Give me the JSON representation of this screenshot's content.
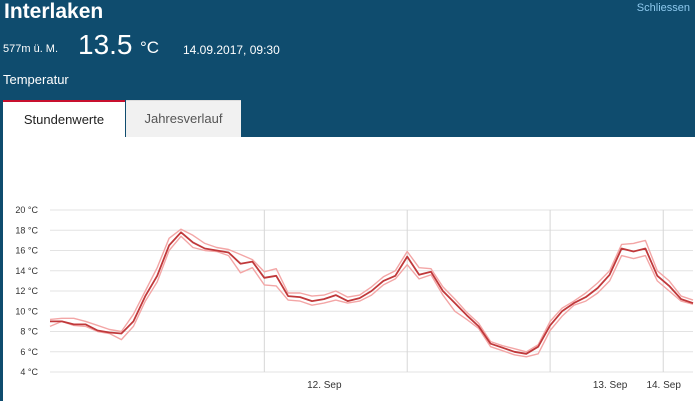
{
  "header": {
    "station": "Interlaken",
    "close_label": "Schliessen",
    "altitude": "577m ü. M.",
    "temperature": "13.5",
    "unit": "°C",
    "timestamp": "14.09.2017, 09:30",
    "section": "Temperatur"
  },
  "tabs": [
    {
      "label": "Stundenwerte",
      "active": true
    },
    {
      "label": "Jahresverlauf",
      "active": false
    }
  ],
  "colors": {
    "header_bg": "#0f4c6e",
    "link": "#8ec9ee",
    "active_tab_border": "#c8102e",
    "series_dark": "#c0393b",
    "series_light": "#f3a6a6"
  },
  "chart_data": {
    "type": "line",
    "ylim": [
      4,
      20
    ],
    "ytick_labels": [
      "20 °C",
      "18 °C",
      "16 °C",
      "14 °C",
      "12 °C",
      "10 °C",
      "8 °C",
      "6 °C",
      "4 °C"
    ],
    "yticks": [
      20,
      18,
      16,
      14,
      12,
      10,
      8,
      6,
      4
    ],
    "xlim_hours": [
      -42,
      12
    ],
    "xticks": [
      {
        "label": "12. Sep",
        "hour": -24
      },
      {
        "label": "13. Sep",
        "hour": 0
      },
      {
        "label": "14. Sep",
        "hour": 4.5
      }
    ],
    "vlines_hours": [
      -24,
      -12,
      0,
      9.5
    ],
    "x_hours": [
      -42.0,
      -41.0,
      -40.0,
      -39.0,
      -38.0,
      -37.0,
      -36.0,
      -35.0,
      -34.0,
      -33.0,
      -32.0,
      -31.0,
      -30.0,
      -29.0,
      -28.0,
      -27.0,
      -26.0,
      -25.0,
      -24.0,
      -23.0,
      -22.0,
      -21.0,
      -20.0,
      -19.0,
      -18.0,
      -17.0,
      -16.0,
      -15.0,
      -14.0,
      -13.0,
      -12.0,
      -11.0,
      -10.0,
      -9.0,
      -8.0,
      -7.0,
      -6.0,
      -5.0,
      -4.0,
      -3.0,
      -2.0,
      -1.0,
      0.0,
      1.0,
      2.0,
      3.0,
      4.0,
      5.0,
      6.0,
      7.0,
      8.0,
      9.0,
      10.0,
      11.0,
      12.0
    ],
    "series": [
      {
        "values": [
          9.0,
          9.0,
          8.7,
          8.7,
          8.1,
          7.9,
          7.8,
          9.0,
          11.5,
          13.5,
          16.5,
          17.8,
          16.8,
          16.2,
          16.0,
          15.8,
          14.7,
          14.9,
          13.3,
          13.5,
          11.5,
          11.4,
          11.0,
          11.2,
          11.6,
          11.0,
          11.3,
          12.0,
          13.0,
          13.5,
          15.4,
          13.6,
          13.9,
          12.0,
          10.8,
          9.6,
          8.5,
          6.8,
          6.4,
          6.0,
          5.8,
          6.5,
          8.6,
          10.0,
          10.8,
          11.4,
          12.3,
          13.6,
          16.2,
          15.9,
          16.2,
          13.5,
          12.5,
          11.2,
          10.8
        ]
      },
      {
        "values": [
          8.5,
          9.0,
          8.6,
          8.5,
          8.0,
          7.8,
          7.2,
          8.5,
          11.0,
          12.9,
          16.0,
          17.4,
          16.3,
          16.0,
          15.9,
          15.5,
          13.8,
          14.3,
          12.6,
          12.5,
          11.1,
          11.0,
          10.6,
          10.8,
          11.1,
          10.8,
          11.0,
          11.6,
          12.6,
          13.2,
          14.6,
          13.2,
          13.6,
          11.6,
          10.0,
          9.2,
          8.3,
          6.5,
          6.1,
          5.7,
          5.5,
          5.8,
          8.1,
          9.5,
          10.6,
          11.0,
          11.8,
          13.0,
          15.5,
          15.2,
          15.5,
          13.0,
          12.0,
          11.0,
          10.7
        ]
      },
      {
        "values": [
          9.2,
          9.3,
          9.3,
          9.0,
          8.6,
          8.2,
          8.0,
          9.7,
          12.0,
          14.3,
          17.2,
          18.1,
          17.5,
          16.7,
          16.3,
          16.1,
          15.6,
          15.1,
          13.9,
          14.2,
          11.8,
          11.8,
          11.5,
          11.6,
          12.0,
          11.4,
          11.6,
          12.4,
          13.4,
          14.0,
          15.9,
          14.3,
          14.2,
          12.4,
          11.2,
          9.9,
          8.8,
          7.0,
          6.6,
          6.3,
          6.0,
          6.7,
          9.0,
          10.3,
          11.0,
          11.8,
          12.8,
          14.0,
          16.6,
          16.7,
          17.0,
          14.0,
          13.0,
          11.5,
          11.1
        ]
      }
    ]
  }
}
